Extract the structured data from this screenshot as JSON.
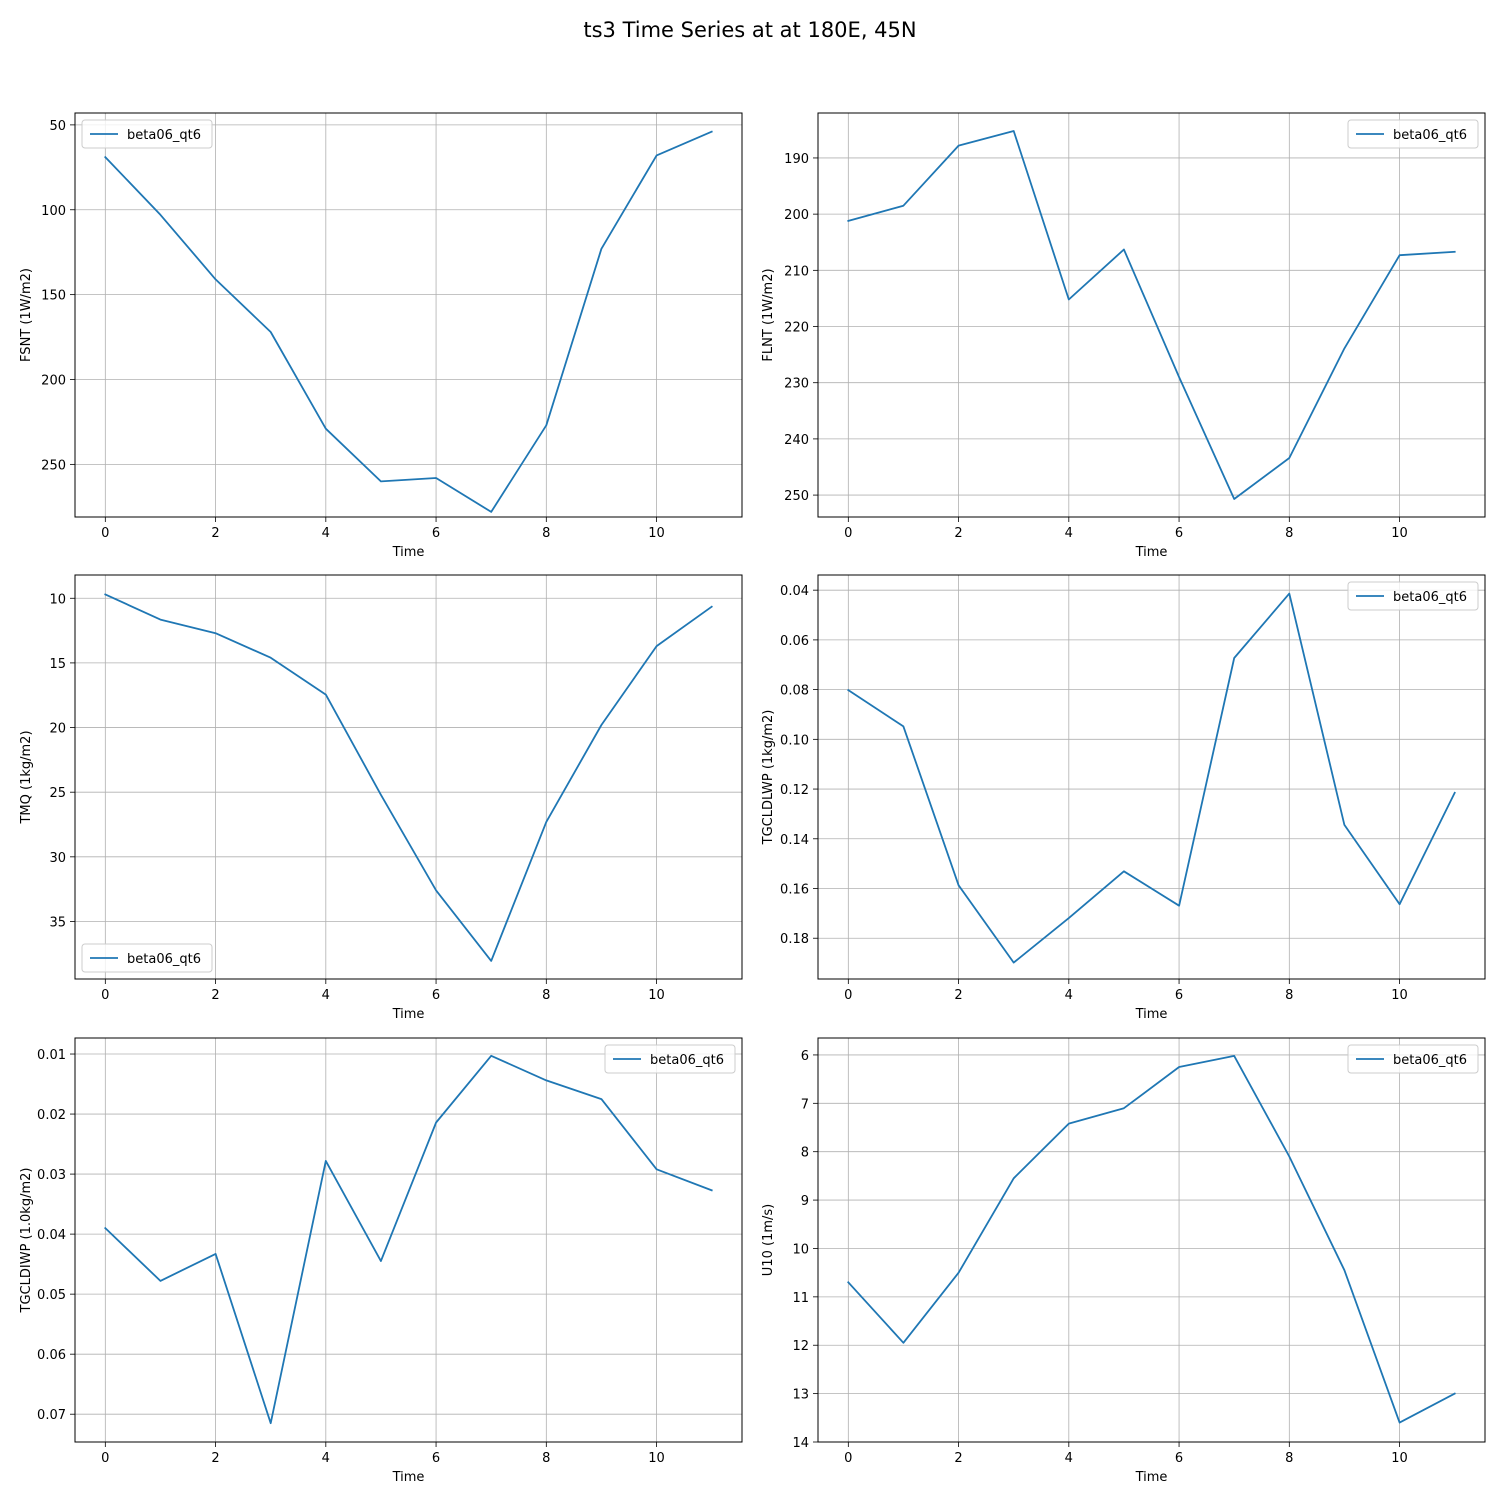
{
  "title": "ts3 Time Series at at 180E, 45N",
  "colors": {
    "series": "#1f77b4"
  },
  "chart_data": [
    {
      "type": "line",
      "xlabel": "Time",
      "ylabel": "FSNT (1W/m2)",
      "xlim": [
        -0.55,
        11.55
      ],
      "ylim": [
        281,
        43
      ],
      "y_inverted": true,
      "grid": true,
      "legend_loc": "upper left",
      "xticks": [
        0,
        2,
        4,
        6,
        8,
        10
      ],
      "yticks": [
        50,
        100,
        150,
        200,
        250
      ],
      "ytick_labels": [
        "50",
        "100",
        "150",
        "200",
        "250"
      ],
      "series": [
        {
          "name": "beta06_qt6",
          "x": [
            0,
            1,
            2,
            3,
            4,
            5,
            6,
            7,
            8,
            9,
            10,
            11
          ],
          "y": [
            69,
            103,
            141,
            172,
            229,
            260,
            258,
            278,
            227,
            123,
            68,
            54
          ]
        }
      ]
    },
    {
      "type": "line",
      "xlabel": "Time",
      "ylabel": "FLNT (1W/m2)",
      "xlim": [
        -0.55,
        11.55
      ],
      "ylim": [
        253.9,
        182
      ],
      "y_inverted": true,
      "grid": true,
      "legend_loc": "upper right",
      "xticks": [
        0,
        2,
        4,
        6,
        8,
        10
      ],
      "yticks": [
        190,
        200,
        210,
        220,
        230,
        240,
        250
      ],
      "ytick_labels": [
        "190",
        "200",
        "210",
        "220",
        "230",
        "240",
        "250"
      ],
      "series": [
        {
          "name": "beta06_qt6",
          "x": [
            0,
            1,
            2,
            3,
            4,
            5,
            6,
            7,
            8,
            9,
            10,
            11
          ],
          "y": [
            201.2,
            198.5,
            187.8,
            185.2,
            215.2,
            206.3,
            229.0,
            250.7,
            243.4,
            223.9,
            207.3,
            206.7
          ]
        }
      ]
    },
    {
      "type": "line",
      "xlabel": "Time",
      "ylabel": "TMQ (1kg/m2)",
      "xlim": [
        -0.55,
        11.55
      ],
      "ylim": [
        39.45,
        8.2
      ],
      "y_inverted": true,
      "grid": true,
      "legend_loc": "lower left",
      "xticks": [
        0,
        2,
        4,
        6,
        8,
        10
      ],
      "yticks": [
        10,
        15,
        20,
        25,
        30,
        35
      ],
      "ytick_labels": [
        "10",
        "15",
        "20",
        "25",
        "30",
        "35"
      ],
      "series": [
        {
          "name": "beta06_qt6",
          "x": [
            0,
            1,
            2,
            3,
            4,
            5,
            6,
            7,
            8,
            9,
            10,
            11
          ],
          "y": [
            9.7,
            11.65,
            12.7,
            14.6,
            17.45,
            25.2,
            32.6,
            38.05,
            27.3,
            19.8,
            13.7,
            10.65
          ]
        }
      ]
    },
    {
      "type": "line",
      "xlabel": "Time",
      "ylabel": "TGCLDLWP (1kg/m2)",
      "xlim": [
        -0.55,
        11.55
      ],
      "ylim": [
        0.1964,
        0.0339
      ],
      "y_inverted": true,
      "grid": true,
      "legend_loc": "upper right",
      "xticks": [
        0,
        2,
        4,
        6,
        8,
        10
      ],
      "yticks": [
        0.04,
        0.06,
        0.08,
        0.1,
        0.12,
        0.14,
        0.16,
        0.18
      ],
      "ytick_labels": [
        "0.04",
        "0.06",
        "0.08",
        "0.10",
        "0.12",
        "0.14",
        "0.16",
        "0.18"
      ],
      "series": [
        {
          "name": "beta06_qt6",
          "x": [
            0,
            1,
            2,
            3,
            4,
            5,
            6,
            7,
            8,
            9,
            10,
            11
          ],
          "y": [
            0.0802,
            0.0948,
            0.1587,
            0.1898,
            0.1719,
            0.1531,
            0.1669,
            0.0673,
            0.0414,
            0.1344,
            0.1663,
            0.1215
          ]
        }
      ]
    },
    {
      "type": "line",
      "xlabel": "Time",
      "ylabel": "TGCLDIWP (1.0kg/m2)",
      "xlim": [
        -0.55,
        11.55
      ],
      "ylim": [
        0.07463,
        0.00733
      ],
      "y_inverted": true,
      "grid": true,
      "legend_loc": "upper right",
      "xticks": [
        0,
        2,
        4,
        6,
        8,
        10
      ],
      "yticks": [
        0.01,
        0.02,
        0.03,
        0.04,
        0.05,
        0.06,
        0.07
      ],
      "ytick_labels": [
        "0.01",
        "0.02",
        "0.03",
        "0.04",
        "0.05",
        "0.06",
        "0.07"
      ],
      "series": [
        {
          "name": "beta06_qt6",
          "x": [
            0,
            1,
            2,
            3,
            4,
            5,
            6,
            7,
            8,
            9,
            10,
            11
          ],
          "y": [
            0.039,
            0.0478,
            0.0433,
            0.0715,
            0.0278,
            0.0445,
            0.0214,
            0.0103,
            0.0144,
            0.0175,
            0.0292,
            0.0327
          ]
        }
      ]
    },
    {
      "type": "line",
      "xlabel": "Time",
      "ylabel": "U10 (1m/s)",
      "xlim": [
        -0.55,
        11.55
      ],
      "ylim": [
        14.0,
        5.65
      ],
      "y_inverted": true,
      "grid": true,
      "legend_loc": "upper right",
      "xticks": [
        0,
        2,
        4,
        6,
        8,
        10
      ],
      "yticks": [
        6,
        7,
        8,
        9,
        10,
        11,
        12,
        13,
        14
      ],
      "ytick_labels": [
        "6",
        "7",
        "8",
        "9",
        "10",
        "11",
        "12",
        "13",
        "14"
      ],
      "series": [
        {
          "name": "beta06_qt6",
          "x": [
            0,
            1,
            2,
            3,
            4,
            5,
            6,
            7,
            8,
            9,
            10,
            11
          ],
          "y": [
            10.7,
            11.95,
            10.5,
            8.55,
            7.42,
            7.1,
            6.25,
            6.02,
            8.1,
            10.45,
            13.6,
            13.0
          ]
        }
      ]
    }
  ]
}
